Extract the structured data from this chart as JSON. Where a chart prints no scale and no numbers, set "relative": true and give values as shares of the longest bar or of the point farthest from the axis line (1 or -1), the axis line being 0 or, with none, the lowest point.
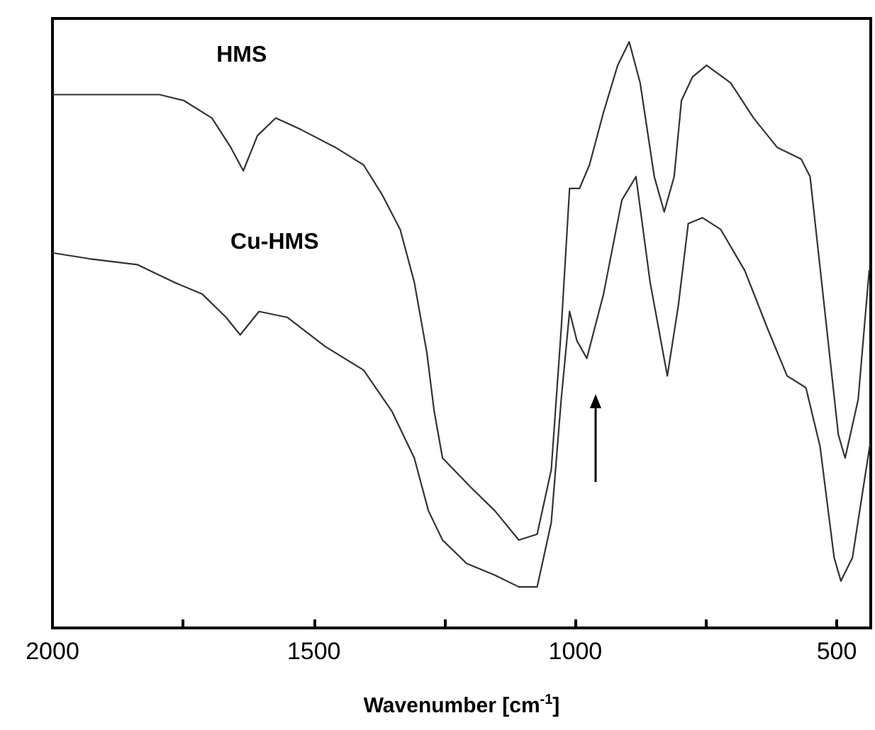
{
  "chart_data": {
    "type": "line",
    "relative": true,
    "xlabel": "Wavenumber [cm$^{-1}$]",
    "xlim": [
      2000,
      435
    ],
    "xticks": [
      2000,
      {
        "value": 1750,
        "label": null
      },
      1500,
      {
        "value": 1250,
        "label": null
      },
      1000,
      {
        "value": 750,
        "label": null
      },
      500
    ],
    "grid": false,
    "legend": false,
    "marker": "none",
    "line_style": "solid",
    "series": [
      {
        "name": "HMS",
        "color": "#333333",
        "x": [
          2000,
          1930,
          1857,
          1795,
          1749,
          1695,
          1659,
          1635,
          1608,
          1573,
          1524,
          1459,
          1405,
          1370,
          1335,
          1308,
          1284,
          1270,
          1254,
          1200,
          1154,
          1108,
          1073,
          1046,
          1027,
          1011,
          992,
          973,
          946,
          919,
          897,
          876,
          849,
          830,
          811,
          797,
          776,
          749,
          703,
          659,
          614,
          568,
          551,
          524,
          497,
          484,
          459,
          438
        ],
        "values": [
          0.91,
          0.91,
          0.91,
          0.91,
          0.9,
          0.87,
          0.82,
          0.78,
          0.84,
          0.87,
          0.85,
          0.82,
          0.79,
          0.74,
          0.68,
          0.59,
          0.47,
          0.37,
          0.29,
          0.24,
          0.2,
          0.15,
          0.16,
          0.27,
          0.51,
          0.75,
          0.75,
          0.79,
          0.88,
          0.96,
          1.0,
          0.93,
          0.77,
          0.71,
          0.77,
          0.9,
          0.94,
          0.96,
          0.93,
          0.87,
          0.82,
          0.8,
          0.77,
          0.55,
          0.33,
          0.29,
          0.39,
          0.61
        ]
      },
      {
        "name": "Cu-HMS",
        "color": "#333333",
        "x": [
          2000,
          1930,
          1838,
          1768,
          1714,
          1668,
          1641,
          1605,
          1551,
          1478,
          1405,
          1351,
          1308,
          1281,
          1254,
          1208,
          1154,
          1108,
          1073,
          1046,
          1027,
          1011,
          997,
          978,
          946,
          911,
          884,
          857,
          824,
          803,
          784,
          757,
          722,
          676,
          632,
          595,
          559,
          532,
          505,
          492,
          470,
          437
        ],
        "values": [
          0.64,
          0.63,
          0.62,
          0.59,
          0.57,
          0.53,
          0.5,
          0.54,
          0.53,
          0.48,
          0.44,
          0.37,
          0.29,
          0.2,
          0.15,
          0.11,
          0.09,
          0.07,
          0.07,
          0.18,
          0.39,
          0.54,
          0.49,
          0.46,
          0.57,
          0.73,
          0.77,
          0.59,
          0.43,
          0.55,
          0.69,
          0.7,
          0.68,
          0.61,
          0.51,
          0.43,
          0.41,
          0.31,
          0.12,
          0.08,
          0.12,
          0.31
        ]
      }
    ]
  }
}
